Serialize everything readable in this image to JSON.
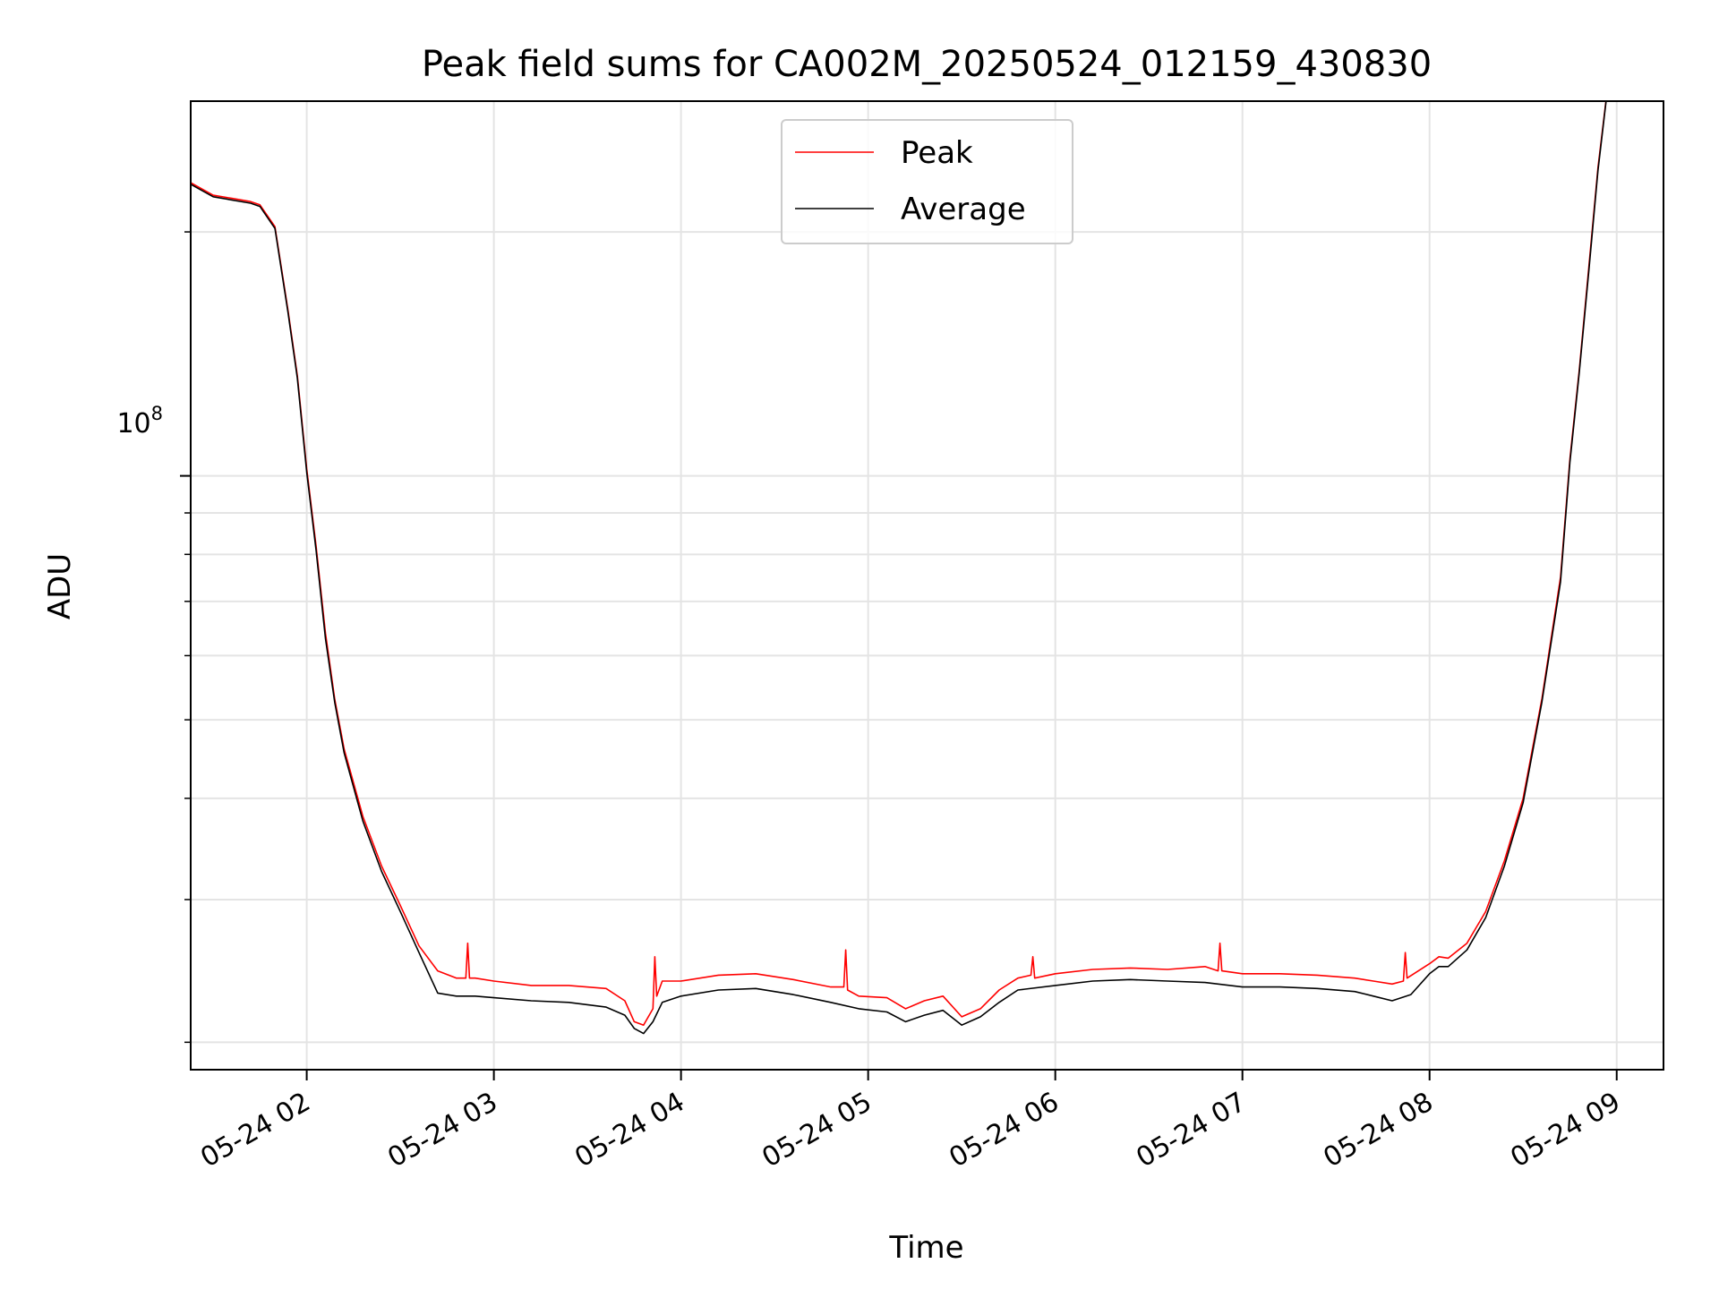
{
  "chart_data": {
    "type": "line",
    "title": "Peak field sums for CA002M_20250524_012159_430830",
    "xlabel": "Time",
    "ylabel": "ADU",
    "yscale": "log",
    "xlim": [
      1.38,
      9.25
    ],
    "ylim": [
      18500000,
      290000000
    ],
    "x_ticks": [
      {
        "value": 2,
        "label": "05-24 02"
      },
      {
        "value": 3,
        "label": "05-24 03"
      },
      {
        "value": 4,
        "label": "05-24 04"
      },
      {
        "value": 5,
        "label": "05-24 05"
      },
      {
        "value": 6,
        "label": "05-24 06"
      },
      {
        "value": 7,
        "label": "05-24 07"
      },
      {
        "value": 8,
        "label": "05-24 08"
      },
      {
        "value": 9,
        "label": "05-24 09"
      }
    ],
    "y_major_tick": {
      "value": 100000000,
      "base": "10",
      "exponent": "8"
    },
    "y_minor_ticks": [
      20000000,
      30000000,
      40000000,
      50000000,
      60000000,
      70000000,
      80000000,
      90000000,
      200000000
    ],
    "grid": true,
    "legend": {
      "position": "top-center",
      "entries": [
        "Peak",
        "Average"
      ]
    },
    "series": [
      {
        "name": "Peak",
        "color": "#ff0000",
        "x": [
          1.38,
          1.5,
          1.6,
          1.7,
          1.75,
          1.83,
          1.9,
          1.95,
          2.0,
          2.05,
          2.1,
          2.15,
          2.2,
          2.3,
          2.4,
          2.5,
          2.6,
          2.7,
          2.8,
          2.85,
          2.86,
          2.87,
          2.9,
          3.0,
          3.2,
          3.4,
          3.6,
          3.7,
          3.75,
          3.8,
          3.85,
          3.86,
          3.87,
          3.9,
          4.0,
          4.2,
          4.4,
          4.6,
          4.8,
          4.87,
          4.88,
          4.89,
          4.95,
          5.1,
          5.2,
          5.3,
          5.4,
          5.5,
          5.6,
          5.7,
          5.8,
          5.87,
          5.88,
          5.89,
          6.0,
          6.2,
          6.4,
          6.6,
          6.8,
          6.87,
          6.88,
          6.89,
          7.0,
          7.2,
          7.4,
          7.6,
          7.7,
          7.8,
          7.86,
          7.87,
          7.88,
          8.0,
          8.05,
          8.1,
          8.2,
          8.3,
          8.4,
          8.5,
          8.6,
          8.7,
          8.75,
          8.8,
          8.85,
          8.9,
          8.95,
          9.05
        ],
        "y": [
          230000000,
          222000000,
          220000000,
          218000000,
          216000000,
          203000000,
          160000000,
          133000000,
          102000000,
          82000000,
          64000000,
          53000000,
          46000000,
          38000000,
          33000000,
          29500000,
          26300000,
          24500000,
          24000000,
          24000000,
          26500000,
          24000000,
          24000000,
          23800000,
          23500000,
          23500000,
          23300000,
          22500000,
          21200000,
          21000000,
          22000000,
          25500000,
          22800000,
          23800000,
          23800000,
          24200000,
          24300000,
          23900000,
          23400000,
          23400000,
          26000000,
          23200000,
          22800000,
          22700000,
          22000000,
          22500000,
          22800000,
          21500000,
          22000000,
          23200000,
          24000000,
          24200000,
          25500000,
          24000000,
          24300000,
          24600000,
          24700000,
          24600000,
          24800000,
          24500000,
          26500000,
          24500000,
          24300000,
          24300000,
          24200000,
          24000000,
          23800000,
          23600000,
          23800000,
          25800000,
          24000000,
          25000000,
          25500000,
          25400000,
          26500000,
          29000000,
          33500000,
          40000000,
          53000000,
          75000000,
          105000000,
          135000000,
          180000000,
          240000000,
          300000000,
          300000000
        ]
      },
      {
        "name": "Average",
        "color": "#000000",
        "x": [
          1.38,
          1.5,
          1.6,
          1.7,
          1.75,
          1.83,
          1.9,
          1.95,
          2.0,
          2.05,
          2.1,
          2.15,
          2.2,
          2.3,
          2.4,
          2.5,
          2.6,
          2.7,
          2.8,
          2.9,
          3.0,
          3.2,
          3.4,
          3.6,
          3.7,
          3.75,
          3.8,
          3.85,
          3.9,
          4.0,
          4.2,
          4.4,
          4.6,
          4.8,
          4.95,
          5.1,
          5.2,
          5.3,
          5.4,
          5.5,
          5.6,
          5.7,
          5.8,
          6.0,
          6.2,
          6.4,
          6.6,
          6.8,
          7.0,
          7.2,
          7.4,
          7.6,
          7.7,
          7.8,
          7.9,
          8.0,
          8.05,
          8.1,
          8.2,
          8.3,
          8.4,
          8.5,
          8.6,
          8.7,
          8.75,
          8.8,
          8.85,
          8.9,
          8.95,
          9.05
        ],
        "y": [
          229000000,
          221000000,
          219000000,
          217000000,
          215000000,
          202000000,
          159000000,
          132000000,
          101000000,
          81000000,
          63000000,
          52500000,
          45500000,
          37500000,
          32500000,
          29000000,
          25800000,
          23000000,
          22800000,
          22800000,
          22700000,
          22500000,
          22400000,
          22100000,
          21600000,
          20800000,
          20500000,
          21200000,
          22400000,
          22800000,
          23200000,
          23300000,
          22900000,
          22400000,
          22000000,
          21800000,
          21200000,
          21600000,
          21900000,
          21000000,
          21500000,
          22400000,
          23200000,
          23500000,
          23800000,
          23900000,
          23800000,
          23700000,
          23400000,
          23400000,
          23300000,
          23100000,
          22800000,
          22500000,
          22900000,
          24300000,
          24800000,
          24800000,
          26000000,
          28500000,
          33000000,
          39500000,
          52500000,
          74000000,
          104000000,
          134000000,
          178000000,
          238000000,
          299000000,
          299000000
        ]
      }
    ]
  }
}
